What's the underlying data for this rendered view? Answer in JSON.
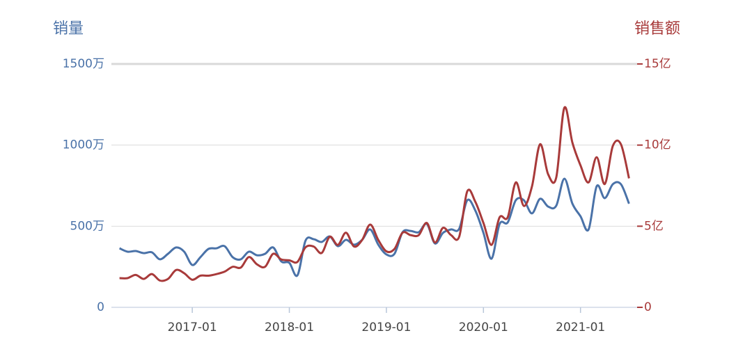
{
  "chart_data": {
    "type": "line",
    "y_title": "销量",
    "y2_title": "销售额",
    "x": [
      "2016-04",
      "2016-05",
      "2016-06",
      "2016-07",
      "2016-08",
      "2016-09",
      "2016-10",
      "2016-11",
      "2016-12",
      "2017-01",
      "2017-02",
      "2017-03",
      "2017-04",
      "2017-05",
      "2017-06",
      "2017-07",
      "2017-08",
      "2017-09",
      "2017-10",
      "2017-11",
      "2017-12",
      "2018-01",
      "2018-02",
      "2018-03",
      "2018-04",
      "2018-05",
      "2018-06",
      "2018-07",
      "2018-08",
      "2018-09",
      "2018-10",
      "2018-11",
      "2018-12",
      "2019-01",
      "2019-02",
      "2019-03",
      "2019-04",
      "2019-05",
      "2019-06",
      "2019-07",
      "2019-08",
      "2019-09",
      "2019-10",
      "2019-11",
      "2019-12",
      "2020-01",
      "2020-02",
      "2020-03",
      "2020-04",
      "2020-05",
      "2020-06",
      "2020-07",
      "2020-08",
      "2020-09",
      "2020-10",
      "2020-11",
      "2020-12",
      "2021-01",
      "2021-02",
      "2021-03",
      "2021-04",
      "2021-05",
      "2021-06",
      "2021-07"
    ],
    "xlim": [
      "2016-03",
      "2021-08"
    ],
    "xticks": [
      "2017-01",
      "2018-01",
      "2019-01",
      "2020-01",
      "2021-01"
    ],
    "ylim": [
      0,
      1500
    ],
    "yticks": [
      0,
      {
        "value": 500,
        "label": "500万"
      },
      {
        "value": 1000,
        "label": "1000万"
      },
      {
        "value": 1500,
        "label": "1500万"
      }
    ],
    "y2lim": [
      0,
      15
    ],
    "y2ticks": [
      0,
      {
        "value": 5,
        "label": "5亿"
      },
      {
        "value": 10,
        "label": "10亿"
      },
      {
        "value": 15,
        "label": "15亿"
      }
    ],
    "grid": true,
    "series": [
      {
        "name": "销量",
        "color": "#4a72a8",
        "axis": "y",
        "values": [
          364,
          343,
          347,
          334,
          339,
          296,
          330,
          369,
          343,
          261,
          309,
          360,
          364,
          377,
          309,
          296,
          343,
          321,
          330,
          369,
          283,
          274,
          197,
          411,
          420,
          403,
          437,
          377,
          416,
          386,
          416,
          480,
          386,
          326,
          330,
          463,
          471,
          463,
          514,
          394,
          459,
          480,
          484,
          660,
          596,
          459,
          300,
          514,
          523,
          660,
          660,
          579,
          669,
          621,
          626,
          793,
          639,
          561,
          480,
          746,
          673,
          759,
          759,
          639
        ]
      },
      {
        "name": "销售额",
        "color": "#a83a3a",
        "axis": "y2",
        "values": [
          1.8,
          1.8,
          2.0,
          1.75,
          2.05,
          1.65,
          1.75,
          2.3,
          2.1,
          1.7,
          1.95,
          1.95,
          2.05,
          2.2,
          2.5,
          2.45,
          3.1,
          2.65,
          2.5,
          3.3,
          2.95,
          2.9,
          2.8,
          3.7,
          3.75,
          3.35,
          4.35,
          3.85,
          4.6,
          3.75,
          4.15,
          5.1,
          4.15,
          3.45,
          3.6,
          4.6,
          4.45,
          4.45,
          5.2,
          4.0,
          4.9,
          4.45,
          4.35,
          7.15,
          6.5,
          5.2,
          3.85,
          5.55,
          5.55,
          7.7,
          6.25,
          7.45,
          10.05,
          8.2,
          8.0,
          12.3,
          10.15,
          8.75,
          7.7,
          9.25,
          7.6,
          9.95,
          10.05,
          7.95
        ]
      }
    ]
  }
}
